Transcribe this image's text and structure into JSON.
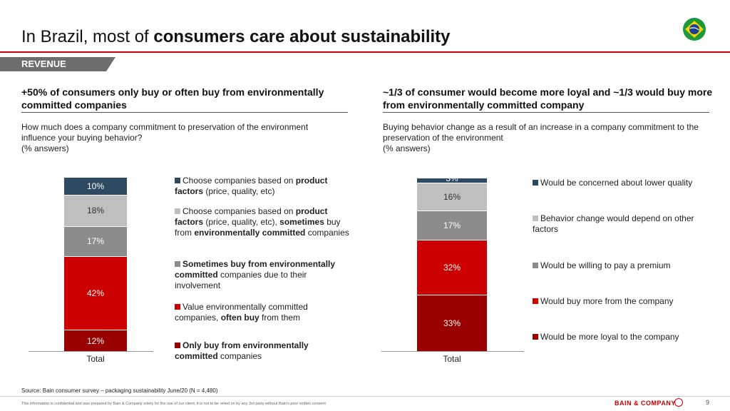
{
  "title": {
    "normal": "In Brazil, most of ",
    "bold": "consumers care about sustainability"
  },
  "section_tag": "REVENUE",
  "left": {
    "heading": "+50% of consumers only buy or often buy from environmentally committed companies",
    "question": "How much does a company commitment to preservation of the environment influence your buying behavior?",
    "unit": "(% answers)"
  },
  "right": {
    "heading": "~1/3 of consumer would become more loyal and ~1/3 would buy more from environmentally committed company",
    "question": "Buying behavior change as a result of an increase in a company commitment to the preservation of the environment",
    "unit": "(% answers)"
  },
  "chart_data": [
    {
      "type": "bar",
      "stacked": true,
      "categories": [
        "Total"
      ],
      "series": [
        {
          "name": [
            {
              "t": "Only buy from environmentally committed",
              "b": true
            },
            {
              "t": " companies",
              "b": false
            }
          ],
          "values": [
            12
          ],
          "color": "#990000",
          "label": "12%",
          "label_color": "#ffffff"
        },
        {
          "name": [
            {
              "t": "Value environmentally committed companies, ",
              "b": false
            },
            {
              "t": "often buy",
              "b": true
            },
            {
              "t": " from them",
              "b": false
            }
          ],
          "values": [
            42
          ],
          "color": "#cc0000",
          "label": "42%",
          "label_color": "#ffffff"
        },
        {
          "name": [
            {
              "t": "Sometimes buy from environmentally committed",
              "b": true
            },
            {
              "t": " companies due to their involvement",
              "b": false
            }
          ],
          "values": [
            17
          ],
          "color": "#8c8c8c",
          "label": "17%",
          "label_color": "#ffffff"
        },
        {
          "name": [
            {
              "t": "Choose companies based on ",
              "b": false
            },
            {
              "t": "product factors",
              "b": true
            },
            {
              "t": " (price, quality, etc), ",
              "b": false
            },
            {
              "t": "sometimes",
              "b": true
            },
            {
              "t": " buy from ",
              "b": false
            },
            {
              "t": "environmentally committed",
              "b": true
            },
            {
              "t": " companies",
              "b": false
            }
          ],
          "values": [
            18
          ],
          "color": "#bfbfbf",
          "label": "18%",
          "label_color": "#333333"
        },
        {
          "name": [
            {
              "t": "Choose companies based on ",
              "b": false
            },
            {
              "t": "product factors",
              "b": true
            },
            {
              "t": " (price, quality, etc)",
              "b": false
            }
          ],
          "values": [
            10
          ],
          "color": "#2e4a62",
          "label": "10%",
          "label_color": "#ffffff"
        }
      ],
      "legend": "right"
    },
    {
      "type": "bar",
      "stacked": true,
      "categories": [
        "Total"
      ],
      "series": [
        {
          "name": [
            {
              "t": "Would be more loyal to the company",
              "b": false
            }
          ],
          "values": [
            33
          ],
          "color": "#990000",
          "label": "33%",
          "label_color": "#ffffff"
        },
        {
          "name": [
            {
              "t": "Would buy more from the company",
              "b": false
            }
          ],
          "values": [
            32
          ],
          "color": "#cc0000",
          "label": "32%",
          "label_color": "#ffffff"
        },
        {
          "name": [
            {
              "t": "Would be willing to pay a premium",
              "b": false
            }
          ],
          "values": [
            17
          ],
          "color": "#8c8c8c",
          "label": "17%",
          "label_color": "#ffffff"
        },
        {
          "name": [
            {
              "t": "Behavior change would depend on other factors",
              "b": false
            }
          ],
          "values": [
            16
          ],
          "color": "#bfbfbf",
          "label": "16%",
          "label_color": "#333333"
        },
        {
          "name": [
            {
              "t": "Would be concerned about lower quality",
              "b": false
            }
          ],
          "values": [
            3
          ],
          "color": "#2e4a62",
          "label": "3%",
          "label_color": "#ffffff"
        }
      ],
      "legend": "right"
    }
  ],
  "source": "Source: Bain consumer survey – packaging sustainability June/20 (N = 4,480)",
  "confidential": "This information is confidential and was prepared by Bain & Company solely for the use of our client; it is not to be relied on by any 3rd party without Bain's prior written consent",
  "brand": "BAIN & COMPANY",
  "page_number": "9",
  "flag_icon": "brazil-flag-icon"
}
